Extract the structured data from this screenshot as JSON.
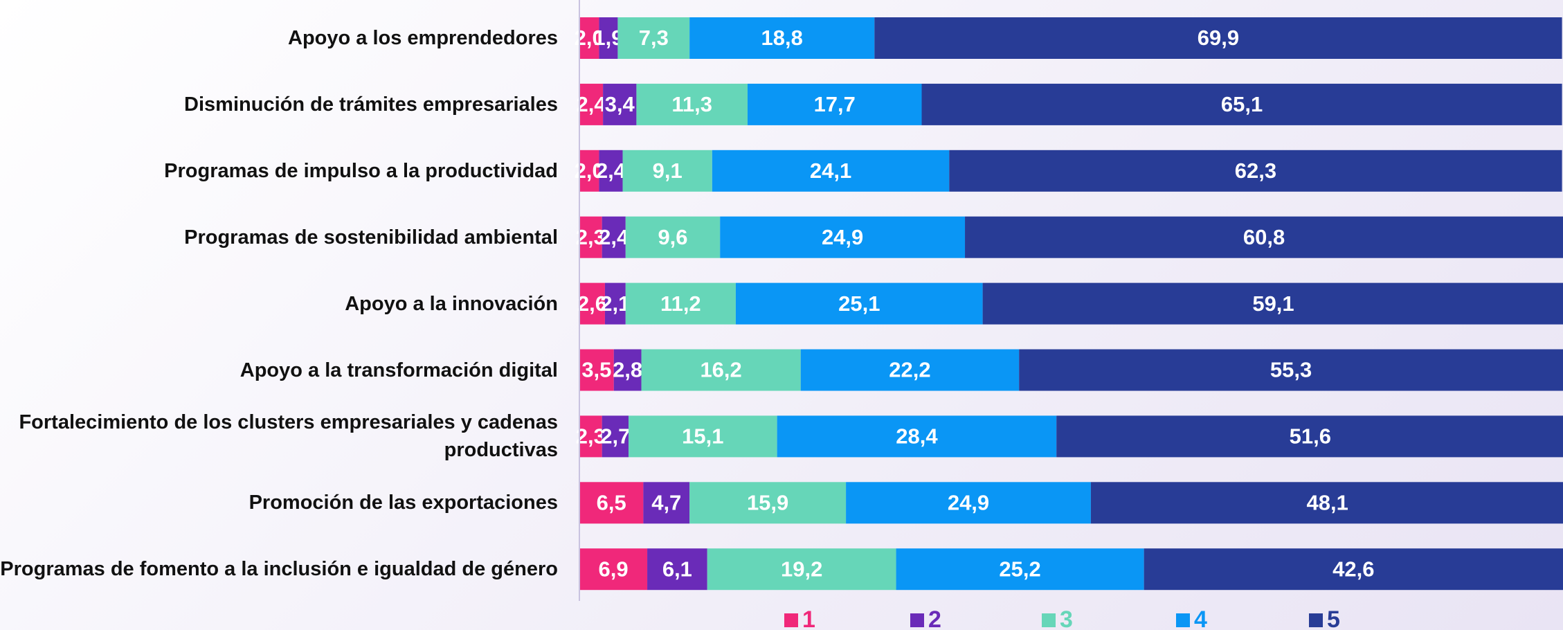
{
  "chart_data": {
    "type": "stacked-barh",
    "categories": [
      "Apoyo a los emprendedores",
      "Disminución de trámites empresariales",
      "Programas de impulso a la productividad",
      "Programas de sostenibilidad ambiental",
      "Apoyo a la innovación",
      "Apoyo a la transformación digital",
      "Fortalecimiento de los clusters empresariales y cadenas productivas",
      "Promoción de las exportaciones",
      "Programas de fomento a la inclusión e igualdad de género"
    ],
    "xlim": [
      0,
      100
    ],
    "legend": "bottom",
    "series": [
      {
        "name": "1",
        "color": "#f0287a",
        "values": [
          2.0,
          2.4,
          2.0,
          2.3,
          2.6,
          3.5,
          2.3,
          6.5,
          6.9
        ],
        "value_labels": [
          "2,0",
          "2,4",
          "2,0",
          "2,3",
          "2,6",
          "3,5",
          "2,3",
          "6,5",
          "6,9"
        ]
      },
      {
        "name": "2",
        "color": "#6a2bb8",
        "values": [
          1.9,
          3.4,
          2.4,
          2.4,
          2.1,
          2.8,
          2.7,
          4.7,
          6.1
        ],
        "value_labels": [
          "1,9",
          "3,4",
          "2,4",
          "2,4",
          "2,1",
          "2,8",
          "2,7",
          "4,7",
          "6,1"
        ]
      },
      {
        "name": "3",
        "color": "#66d6b8",
        "values": [
          7.3,
          11.3,
          9.1,
          9.6,
          11.2,
          16.2,
          15.1,
          15.9,
          19.2
        ],
        "value_labels": [
          "7,3",
          "11,3",
          "9,1",
          "9,6",
          "11,2",
          "16,2",
          "15,1",
          "15,9",
          "19,2"
        ]
      },
      {
        "name": "4",
        "color": "#0a96f5",
        "values": [
          18.8,
          17.7,
          24.1,
          24.9,
          25.1,
          22.2,
          28.4,
          24.9,
          25.2
        ],
        "value_labels": [
          "18,8",
          "17,7",
          "24,1",
          "24,9",
          "25,1",
          "22,2",
          "28,4",
          "24,9",
          "25,2"
        ]
      },
      {
        "name": "5",
        "color": "#283c96",
        "values": [
          69.9,
          65.1,
          62.3,
          60.8,
          59.1,
          55.3,
          51.6,
          48.1,
          42.6
        ],
        "value_labels": [
          "69,9",
          "65,1",
          "62,3",
          "60,8",
          "59,1",
          "55,3",
          "51,6",
          "48,1",
          "42,6"
        ]
      }
    ]
  }
}
